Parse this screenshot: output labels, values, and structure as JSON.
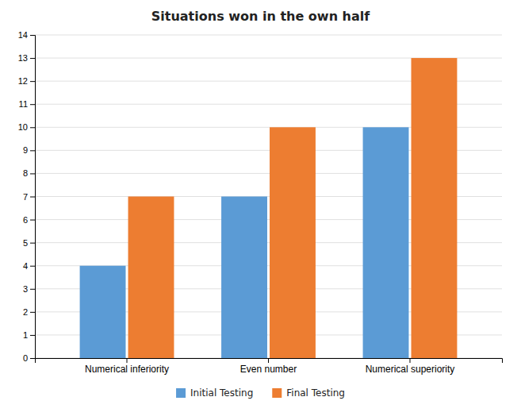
{
  "chart_data": {
    "type": "bar",
    "title": "Situations won in the own half",
    "categories": [
      "Numerical inferiority",
      "Even number",
      "Numerical superiority"
    ],
    "series": [
      {
        "name": "Initial Testing",
        "values": [
          4,
          7,
          10
        ],
        "color": "#5B9BD5"
      },
      {
        "name": "Final Testing",
        "values": [
          7,
          10,
          13
        ],
        "color": "#ED7D31"
      }
    ],
    "ylim": [
      0,
      14
    ],
    "yticks": [
      0,
      1,
      2,
      3,
      4,
      5,
      6,
      7,
      8,
      9,
      10,
      11,
      12,
      13,
      14
    ],
    "grid": true,
    "legend": "bottom"
  }
}
